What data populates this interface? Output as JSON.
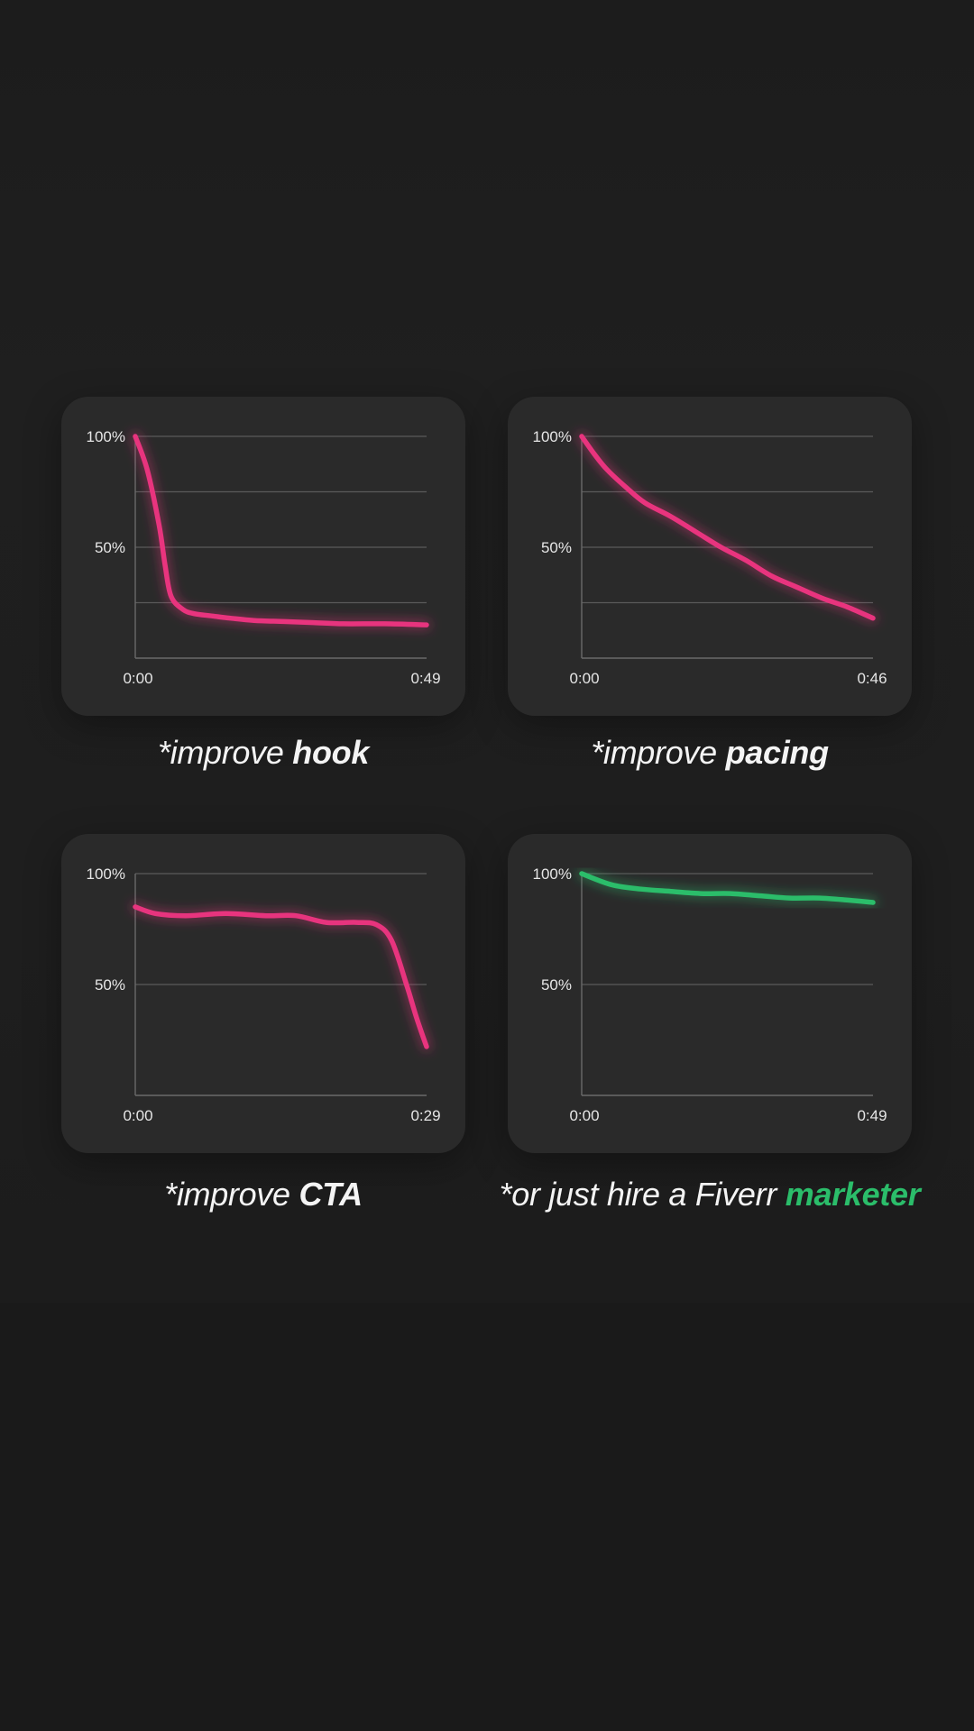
{
  "colors": {
    "background": "#1b1b1b",
    "panel": "#2a2a2a",
    "grid": "#5a5a5a",
    "axis": "#6a6a6a",
    "pink": "#e8347e",
    "green": "#2bbd6a",
    "text": "#f4f4f4"
  },
  "chart_data": [
    {
      "type": "line",
      "x": [
        "0:00",
        "",
        "",
        "",
        "",
        "",
        "",
        "",
        "",
        "",
        "",
        "",
        "",
        "",
        "0:49"
      ],
      "x_seconds": [
        0,
        2,
        4,
        5,
        6,
        8,
        10,
        13,
        16,
        20,
        25,
        30,
        35,
        42,
        49
      ],
      "y_percent": [
        100,
        85,
        60,
        42,
        28,
        22,
        20,
        19,
        18,
        17,
        16.5,
        16,
        15.5,
        15.5,
        15
      ],
      "xlim": [
        "0:00",
        "0:49"
      ],
      "ylim": [
        0,
        100
      ],
      "ytick_labels": [
        "100%",
        "50%"
      ],
      "xtick_labels": [
        "0:00",
        "0:49"
      ],
      "grid_lines_percent": [
        100,
        75,
        50,
        25
      ],
      "color": "#e8347e",
      "caption": {
        "prefix": "*improve ",
        "emphasis": "hook",
        "emphasis_color": "#f4f4f4"
      }
    },
    {
      "type": "line",
      "x_seconds": [
        0,
        2,
        4,
        7,
        10,
        14,
        18,
        22,
        26,
        30,
        34,
        38,
        42,
        46
      ],
      "y_percent": [
        100,
        92,
        85,
        77,
        70,
        64,
        57,
        50,
        44,
        37,
        32,
        27,
        23,
        18
      ],
      "xlim": [
        "0:00",
        "0:46"
      ],
      "ylim": [
        0,
        100
      ],
      "ytick_labels": [
        "100%",
        "50%"
      ],
      "xtick_labels": [
        "0:00",
        "0:46"
      ],
      "grid_lines_percent": [
        100,
        75,
        50,
        25
      ],
      "color": "#e8347e",
      "caption": {
        "prefix": "*improve ",
        "emphasis": "pacing",
        "emphasis_color": "#f4f4f4"
      }
    },
    {
      "type": "line",
      "x_seconds": [
        0,
        2,
        5,
        9,
        13,
        16,
        19,
        22,
        24,
        25.5,
        27,
        28,
        29
      ],
      "y_percent": [
        85,
        82,
        81,
        82,
        81,
        81,
        78,
        78,
        77,
        70,
        50,
        35,
        22
      ],
      "xlim": [
        "0:00",
        "0:29"
      ],
      "ylim": [
        0,
        100
      ],
      "ytick_labels": [
        "100%",
        "50%"
      ],
      "xtick_labels": [
        "0:00",
        "0:29"
      ],
      "grid_lines_percent": [
        100,
        50
      ],
      "color": "#e8347e",
      "caption": {
        "prefix": "*improve ",
        "emphasis": "CTA",
        "emphasis_color": "#f4f4f4"
      }
    },
    {
      "type": "line",
      "x_seconds": [
        0,
        5,
        10,
        15,
        20,
        25,
        30,
        35,
        40,
        45,
        49
      ],
      "y_percent": [
        100,
        95,
        93,
        92,
        91,
        91,
        90,
        89,
        89,
        88,
        87
      ],
      "xlim": [
        "0:00",
        "0:49"
      ],
      "ylim": [
        0,
        100
      ],
      "ytick_labels": [
        "100%",
        "50%"
      ],
      "xtick_labels": [
        "0:00",
        "0:49"
      ],
      "grid_lines_percent": [
        100,
        50
      ],
      "color": "#2bbd6a",
      "caption": {
        "prefix": "*or just hire a Fiverr ",
        "emphasis": "marketer",
        "emphasis_color": "#2bbd6a"
      }
    }
  ],
  "captions": [
    {
      "prefix": "*improve ",
      "emphasis": "hook"
    },
    {
      "prefix": "*improve ",
      "emphasis": "pacing"
    },
    {
      "prefix": "*improve ",
      "emphasis": "CTA"
    },
    {
      "prefix": "*or just hire a Fiverr ",
      "emphasis": "marketer"
    }
  ]
}
